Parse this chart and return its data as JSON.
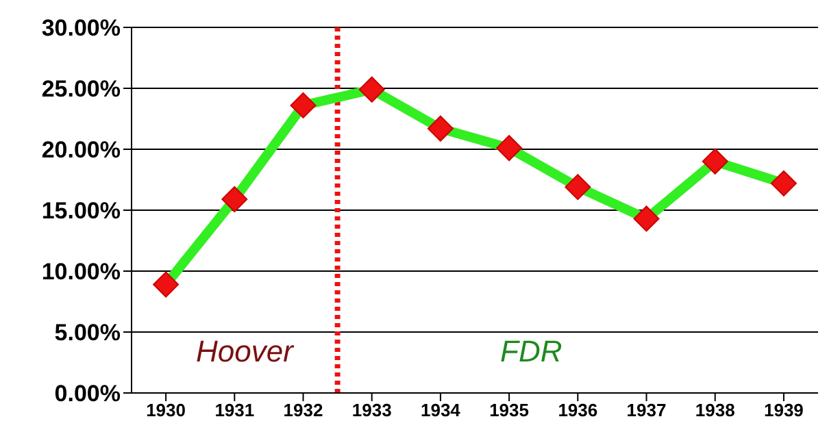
{
  "chart_data": {
    "type": "line",
    "x": [
      1930,
      1931,
      1932,
      1933,
      1934,
      1935,
      1936,
      1937,
      1938,
      1939
    ],
    "xlim": [
      1929.5,
      1939.5
    ],
    "xticks": [
      1930,
      1931,
      1932,
      1933,
      1934,
      1935,
      1936,
      1937,
      1938,
      1939
    ],
    "ylim": [
      0,
      30
    ],
    "yticks": [
      {
        "value": 0,
        "label": "0.00%"
      },
      {
        "value": 5,
        "label": "5.00%"
      },
      {
        "value": 10,
        "label": "10.00%"
      },
      {
        "value": 15,
        "label": "15.00%"
      },
      {
        "value": 20,
        "label": "20.00%"
      },
      {
        "value": 25,
        "label": "25.00%"
      },
      {
        "value": 30,
        "label": "30.00%"
      }
    ],
    "series": [
      {
        "color": "#33ee22",
        "values": [
          8.9,
          15.9,
          23.6,
          24.9,
          21.7,
          20.1,
          16.9,
          14.3,
          19.0,
          17.2
        ]
      }
    ],
    "marker": "diamond",
    "grid": "y",
    "legend": false,
    "ref_lines": [
      {
        "axis": "x",
        "value": 1932.5,
        "color": "#ee1111",
        "line_style": "dotted"
      }
    ],
    "annotations": [
      "Hoover",
      "FDR"
    ]
  }
}
